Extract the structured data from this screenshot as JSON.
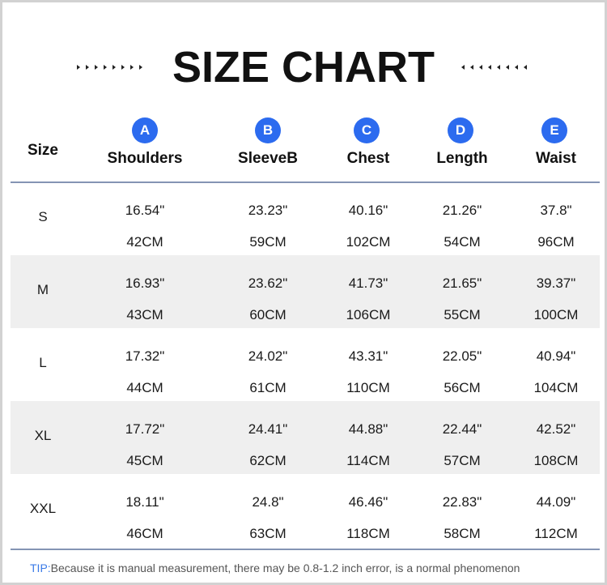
{
  "title": "SIZE CHART",
  "size_header": "Size",
  "columns": [
    {
      "badge": "A",
      "label": "Shoulders"
    },
    {
      "badge": "B",
      "label": "SleeveB"
    },
    {
      "badge": "C",
      "label": "Chest"
    },
    {
      "badge": "D",
      "label": "Length"
    },
    {
      "badge": "E",
      "label": "Waist"
    }
  ],
  "rows": [
    {
      "size": "S",
      "inch": [
        "16.54\"",
        "23.23\"",
        "40.16\"",
        "21.26\"",
        "37.8\""
      ],
      "cm": [
        "42CM",
        "59CM",
        "102CM",
        "54CM",
        "96CM"
      ]
    },
    {
      "size": "M",
      "inch": [
        "16.93\"",
        "23.62\"",
        "41.73\"",
        "21.65\"",
        "39.37\""
      ],
      "cm": [
        "43CM",
        "60CM",
        "106CM",
        "55CM",
        "100CM"
      ]
    },
    {
      "size": "L",
      "inch": [
        "17.32\"",
        "24.02\"",
        "43.31\"",
        "22.05\"",
        "40.94\""
      ],
      "cm": [
        "44CM",
        "61CM",
        "110CM",
        "56CM",
        "104CM"
      ]
    },
    {
      "size": "XL",
      "inch": [
        "17.72\"",
        "24.41\"",
        "44.88\"",
        "22.44\"",
        "42.52\""
      ],
      "cm": [
        "45CM",
        "62CM",
        "114CM",
        "57CM",
        "108CM"
      ]
    },
    {
      "size": "XXL",
      "inch": [
        "18.11\"",
        "24.8\"",
        "46.46\"",
        "22.83\"",
        "44.09\""
      ],
      "cm": [
        "46CM",
        "63CM",
        "118CM",
        "58CM",
        "112CM"
      ]
    }
  ],
  "tip": {
    "key": "TIP:",
    "text": "Because it is manual measurement, there may be 0.8-1.2 inch error, is a normal phenomenon"
  },
  "colors": {
    "badge": "#2c6bef",
    "rule": "#8494b4",
    "shade": "#efefef",
    "tip_key": "#3b7be8"
  }
}
